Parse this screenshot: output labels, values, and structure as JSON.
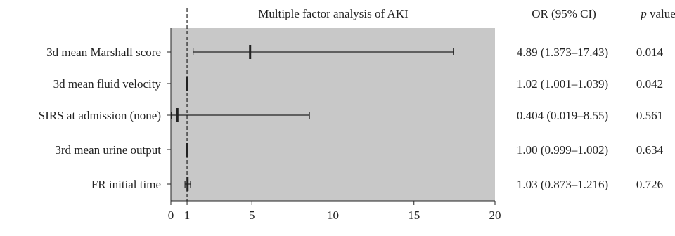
{
  "chart_data": {
    "type": "forest",
    "title": "Multiple factor analysis of AKI",
    "or_header": "OR (95% CI)",
    "p_header_italic": "p",
    "p_header_rest": " value",
    "xlim": [
      0,
      20
    ],
    "xticks": [
      0,
      1,
      5,
      10,
      15,
      20
    ],
    "reference_line": 1,
    "rows": [
      {
        "label": "3d mean Marshall score",
        "or": 4.89,
        "lo": 1.373,
        "hi": 17.43,
        "or_text": "4.89 (1.373–17.43)",
        "p_text": "0.014"
      },
      {
        "label": "3d mean fluid velocity",
        "or": 1.02,
        "lo": 1.001,
        "hi": 1.039,
        "or_text": "1.02 (1.001–1.039)",
        "p_text": "0.042"
      },
      {
        "label": "SIRS at admission (none)",
        "or": 0.404,
        "lo": 0.019,
        "hi": 8.55,
        "or_text": "0.404 (0.019–8.55)",
        "p_text": "0.561"
      },
      {
        "label": "3rd mean urine output",
        "or": 1.0,
        "lo": 0.999,
        "hi": 1.002,
        "or_text": "1.00 (0.999–1.002)",
        "p_text": "0.634"
      },
      {
        "label": "FR initial time",
        "or": 1.03,
        "lo": 0.873,
        "hi": 1.216,
        "or_text": "1.03 (0.873–1.216)",
        "p_text": "0.726"
      }
    ],
    "colors": {
      "plot_bg": "#c8c8c8",
      "line": "#222222"
    }
  }
}
